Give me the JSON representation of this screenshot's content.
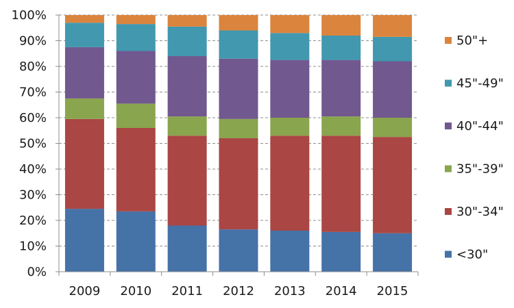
{
  "chart_data": {
    "type": "bar",
    "stacked": true,
    "percent": true,
    "categories": [
      "2009",
      "2010",
      "2011",
      "2012",
      "2013",
      "2014",
      "2015"
    ],
    "y_ticks": [
      "0%",
      "10%",
      "20%",
      "30%",
      "40%",
      "50%",
      "60%",
      "70%",
      "80%",
      "90%",
      "100%"
    ],
    "ylim": [
      0,
      100
    ],
    "grid": true,
    "legend_position": "right",
    "series": [
      {
        "name": "<30\"",
        "color": "#4572A7",
        "values": [
          24.5,
          23.5,
          18,
          16.5,
          16,
          15.5,
          15
        ]
      },
      {
        "name": "30\"-34\"",
        "color": "#AA4643",
        "values": [
          35,
          32.5,
          35,
          35.5,
          37,
          37.5,
          37.5
        ]
      },
      {
        "name": "35\"-39\"",
        "color": "#89A54E",
        "values": [
          8,
          9.5,
          7.5,
          7.5,
          7,
          7.5,
          7.5
        ]
      },
      {
        "name": "40\"-44\"",
        "color": "#71588F",
        "values": [
          20,
          20.5,
          23.5,
          23.5,
          22.5,
          22,
          22
        ]
      },
      {
        "name": "45\"-49\"",
        "color": "#4198AF",
        "values": [
          9.5,
          10.5,
          11.5,
          11,
          10.5,
          9.5,
          9.5
        ]
      },
      {
        "name": "50\"+",
        "color": "#DB843D",
        "values": [
          3,
          3.5,
          4.5,
          6,
          7,
          8,
          8.5
        ]
      }
    ]
  }
}
